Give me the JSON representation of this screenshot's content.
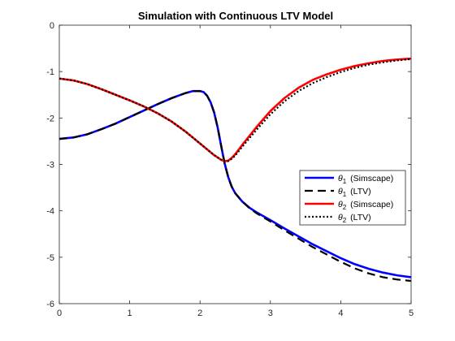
{
  "chart_data": {
    "type": "line",
    "title": "Simulation with Continuous LTV Model",
    "xlabel": "",
    "ylabel": "",
    "xlim": [
      0,
      5
    ],
    "ylim": [
      -6,
      0
    ],
    "xticks": [
      0,
      1,
      2,
      3,
      4,
      5
    ],
    "yticks": [
      0,
      -1,
      -2,
      -3,
      -4,
      -5,
      -6
    ],
    "grid": false,
    "legend_position": "right",
    "series": [
      {
        "name": "θ1 (Simscape)",
        "legend_symbol": "θ",
        "legend_sub": "1",
        "legend_text": "(Simscape)",
        "color": "#0000ff",
        "style": "solid",
        "x": [
          0,
          0.2,
          0.4,
          0.6,
          0.8,
          1.0,
          1.2,
          1.4,
          1.6,
          1.8,
          1.9,
          2.0,
          2.05,
          2.1,
          2.15,
          2.2,
          2.25,
          2.3,
          2.35,
          2.4,
          2.45,
          2.5,
          2.6,
          2.7,
          2.8,
          3.0,
          3.2,
          3.4,
          3.6,
          3.8,
          4.0,
          4.2,
          4.4,
          4.6,
          4.8,
          5.0
        ],
        "y": [
          -2.45,
          -2.42,
          -2.35,
          -2.24,
          -2.12,
          -1.98,
          -1.84,
          -1.7,
          -1.57,
          -1.46,
          -1.42,
          -1.42,
          -1.44,
          -1.52,
          -1.66,
          -1.88,
          -2.2,
          -2.6,
          -2.98,
          -3.27,
          -3.48,
          -3.62,
          -3.8,
          -3.93,
          -4.03,
          -4.2,
          -4.38,
          -4.55,
          -4.72,
          -4.87,
          -5.02,
          -5.15,
          -5.25,
          -5.33,
          -5.39,
          -5.43
        ]
      },
      {
        "name": "θ1 (LTV)",
        "legend_symbol": "θ",
        "legend_sub": "1",
        "legend_text": "(LTV)",
        "color": "#000000",
        "style": "dashed",
        "x": [
          0,
          0.2,
          0.4,
          0.6,
          0.8,
          1.0,
          1.2,
          1.4,
          1.6,
          1.8,
          1.9,
          2.0,
          2.05,
          2.1,
          2.15,
          2.2,
          2.25,
          2.3,
          2.35,
          2.4,
          2.45,
          2.5,
          2.6,
          2.7,
          2.8,
          3.0,
          3.2,
          3.4,
          3.6,
          3.8,
          4.0,
          4.2,
          4.4,
          4.6,
          4.8,
          5.0
        ],
        "y": [
          -2.45,
          -2.42,
          -2.35,
          -2.24,
          -2.12,
          -1.98,
          -1.84,
          -1.7,
          -1.57,
          -1.46,
          -1.42,
          -1.42,
          -1.44,
          -1.52,
          -1.66,
          -1.88,
          -2.2,
          -2.6,
          -2.98,
          -3.27,
          -3.48,
          -3.62,
          -3.8,
          -3.94,
          -4.05,
          -4.23,
          -4.42,
          -4.6,
          -4.78,
          -4.94,
          -5.1,
          -5.24,
          -5.35,
          -5.43,
          -5.48,
          -5.51
        ]
      },
      {
        "name": "θ2 (Simscape)",
        "legend_symbol": "θ",
        "legend_sub": "2",
        "legend_text": "(Simscape)",
        "color": "#ff0000",
        "style": "solid",
        "x": [
          0,
          0.2,
          0.4,
          0.6,
          0.8,
          1.0,
          1.2,
          1.4,
          1.6,
          1.8,
          2.0,
          2.2,
          2.3,
          2.35,
          2.4,
          2.45,
          2.5,
          2.6,
          2.8,
          3.0,
          3.2,
          3.4,
          3.6,
          3.8,
          4.0,
          4.2,
          4.4,
          4.6,
          4.8,
          5.0
        ],
        "y": [
          -1.15,
          -1.19,
          -1.27,
          -1.38,
          -1.5,
          -1.62,
          -1.75,
          -1.9,
          -2.08,
          -2.3,
          -2.55,
          -2.8,
          -2.9,
          -2.93,
          -2.92,
          -2.86,
          -2.78,
          -2.58,
          -2.2,
          -1.85,
          -1.57,
          -1.35,
          -1.18,
          -1.06,
          -0.96,
          -0.88,
          -0.82,
          -0.77,
          -0.74,
          -0.72
        ]
      },
      {
        "name": "θ2 (LTV)",
        "legend_symbol": "θ",
        "legend_sub": "2",
        "legend_text": "(LTV)",
        "color": "#000000",
        "style": "dotted",
        "x": [
          0,
          0.2,
          0.4,
          0.6,
          0.8,
          1.0,
          1.2,
          1.4,
          1.6,
          1.8,
          2.0,
          2.2,
          2.3,
          2.35,
          2.4,
          2.45,
          2.5,
          2.6,
          2.8,
          3.0,
          3.2,
          3.4,
          3.6,
          3.8,
          4.0,
          4.2,
          4.4,
          4.6,
          4.8,
          5.0
        ],
        "y": [
          -1.15,
          -1.19,
          -1.27,
          -1.38,
          -1.5,
          -1.62,
          -1.75,
          -1.9,
          -2.08,
          -2.3,
          -2.55,
          -2.8,
          -2.9,
          -2.93,
          -2.93,
          -2.88,
          -2.81,
          -2.62,
          -2.26,
          -1.92,
          -1.64,
          -1.42,
          -1.25,
          -1.12,
          -1.01,
          -0.92,
          -0.85,
          -0.8,
          -0.76,
          -0.73
        ]
      }
    ]
  }
}
